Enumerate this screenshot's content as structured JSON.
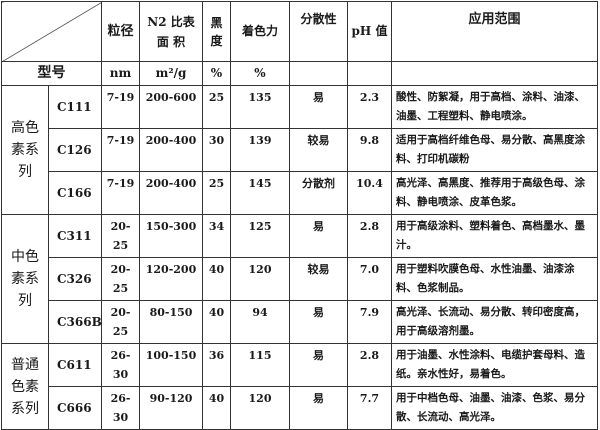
{
  "header": {
    "particle_size": "粒径",
    "surface_area": "N2 比表面 积",
    "blackness": "黑度",
    "tinting": "着色力",
    "dispersion": "分散性",
    "ph": "pH 值",
    "application": "应用范围"
  },
  "units": {
    "model": "型号",
    "particle_size": "nm",
    "surface_area": "m²/g",
    "blackness": "%",
    "tinting": "%"
  },
  "series": [
    {
      "name": "高色素系列",
      "rows": [
        {
          "model": "C111",
          "size": "7-19",
          "area": "200-600",
          "black": "25",
          "tint": "135",
          "disp": "易",
          "ph": "2.3",
          "app": "酸性、防絮凝，用于高档、涂料、油漆、油墨、工程塑料、静电喷涂。"
        },
        {
          "model": "C126",
          "size": "7-19",
          "area": "200-400",
          "black": "30",
          "tint": "139",
          "disp": "较易",
          "ph": "9.8",
          "app": "适用于高档纤维色母、易分散、高黑度涂料、打印机碳粉"
        },
        {
          "model": "C166",
          "size": "7-19",
          "area": "200-400",
          "black": "25",
          "tint": "145",
          "disp": "分散剂",
          "ph": "10.4",
          "app": "高光泽、高黑度、推荐用于高级色母、涂料、静电喷涂、皮革色浆。"
        }
      ]
    },
    {
      "name": "中色素系列",
      "rows": [
        {
          "model": "C311",
          "size": "20-25",
          "area": "150-300",
          "black": "34",
          "tint": "125",
          "disp": "易",
          "ph": "2.8",
          "app": "用于高级涂料、塑料着色、高档墨水、墨汁。"
        },
        {
          "model": "C326",
          "size": "20-25",
          "area": "120-200",
          "black": "40",
          "tint": "120",
          "disp": "较易",
          "ph": "7.0",
          "app": "用于塑料吹膜色母、水性油墨、油漆涂料、色浆制品。"
        },
        {
          "model": "C366B",
          "size": "20-25",
          "area": "80-150",
          "black": "40",
          "tint": "94",
          "disp": "易",
          "ph": "7.9",
          "app": "高光泽、长流动、易分散、转印密度高，用于高级溶剂墨。"
        }
      ]
    },
    {
      "name": "普通色素系列",
      "rows": [
        {
          "model": "C611",
          "size": "26-30",
          "area": "100-150",
          "black": "36",
          "tint": "115",
          "disp": "易",
          "ph": "2.8",
          "app": "用于油墨、水性涂料、电缆护套母料、造纸。亲水性好，易着色。"
        },
        {
          "model": "C666",
          "size": "26-30",
          "area": "90-120",
          "black": "40",
          "tint": "120",
          "disp": "易",
          "ph": "7.7",
          "app": "用于中档色母、油墨、油漆、色浆、易分散、长流动、高光泽。"
        }
      ]
    }
  ]
}
